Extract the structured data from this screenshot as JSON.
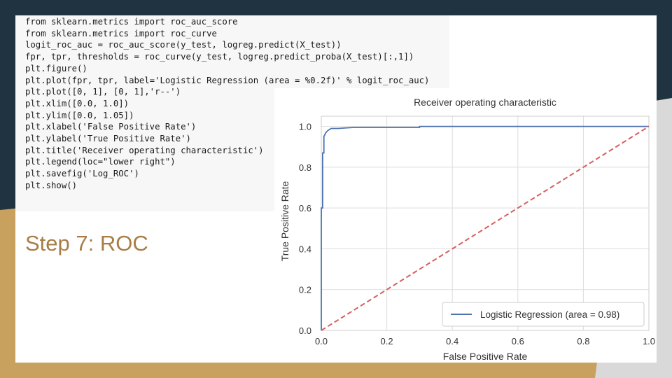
{
  "slide": {
    "heading": "Step 7: ROC",
    "colors": {
      "background": "#1f3440",
      "accent": "#c8a15e",
      "heading": "#a87d45"
    }
  },
  "code": {
    "lines": [
      "from sklearn.metrics import roc_auc_score",
      "from sklearn.metrics import roc_curve",
      "logit_roc_auc = roc_auc_score(y_test, logreg.predict(X_test))",
      "fpr, tpr, thresholds = roc_curve(y_test, logreg.predict_proba(X_test)[:,1])",
      "plt.figure()",
      "plt.plot(fpr, tpr, label='Logistic Regression (area = %0.2f)' % logit_roc_auc)",
      "plt.plot([0, 1], [0, 1],'r--')",
      "plt.xlim([0.0, 1.0])",
      "plt.ylim([0.0, 1.05])",
      "plt.xlabel('False Positive Rate')",
      "plt.ylabel('True Positive Rate')",
      "plt.title('Receiver operating characteristic')",
      "plt.legend(loc=\"lower right\")",
      "plt.savefig('Log_ROC')",
      "plt.show()"
    ]
  },
  "chart_data": {
    "type": "line",
    "title": "Receiver operating characteristic",
    "xlabel": "False Positive Rate",
    "ylabel": "True Positive Rate",
    "xlim": [
      0.0,
      1.0
    ],
    "ylim": [
      0.0,
      1.05
    ],
    "xticks": [
      "0.0",
      "0.2",
      "0.4",
      "0.6",
      "0.8",
      "1.0"
    ],
    "yticks": [
      "0.0",
      "0.2",
      "0.4",
      "0.6",
      "0.8",
      "1.0"
    ],
    "grid": true,
    "legend_position": "lower right",
    "series": [
      {
        "name": "Logistic Regression (area = 0.98)",
        "color": "#4c72b0",
        "style": "solid",
        "x": [
          0.0,
          0.0,
          0.004,
          0.004,
          0.008,
          0.008,
          0.014,
          0.02,
          0.03,
          0.05,
          0.1,
          0.3,
          0.3,
          1.0
        ],
        "y": [
          0.0,
          0.6,
          0.6,
          0.87,
          0.87,
          0.95,
          0.97,
          0.98,
          0.99,
          0.99,
          0.995,
          0.995,
          1.0,
          1.0
        ]
      },
      {
        "name": "",
        "color": "#d65f5f",
        "style": "dashed",
        "x": [
          0.0,
          1.0
        ],
        "y": [
          0.0,
          1.0
        ]
      }
    ]
  }
}
